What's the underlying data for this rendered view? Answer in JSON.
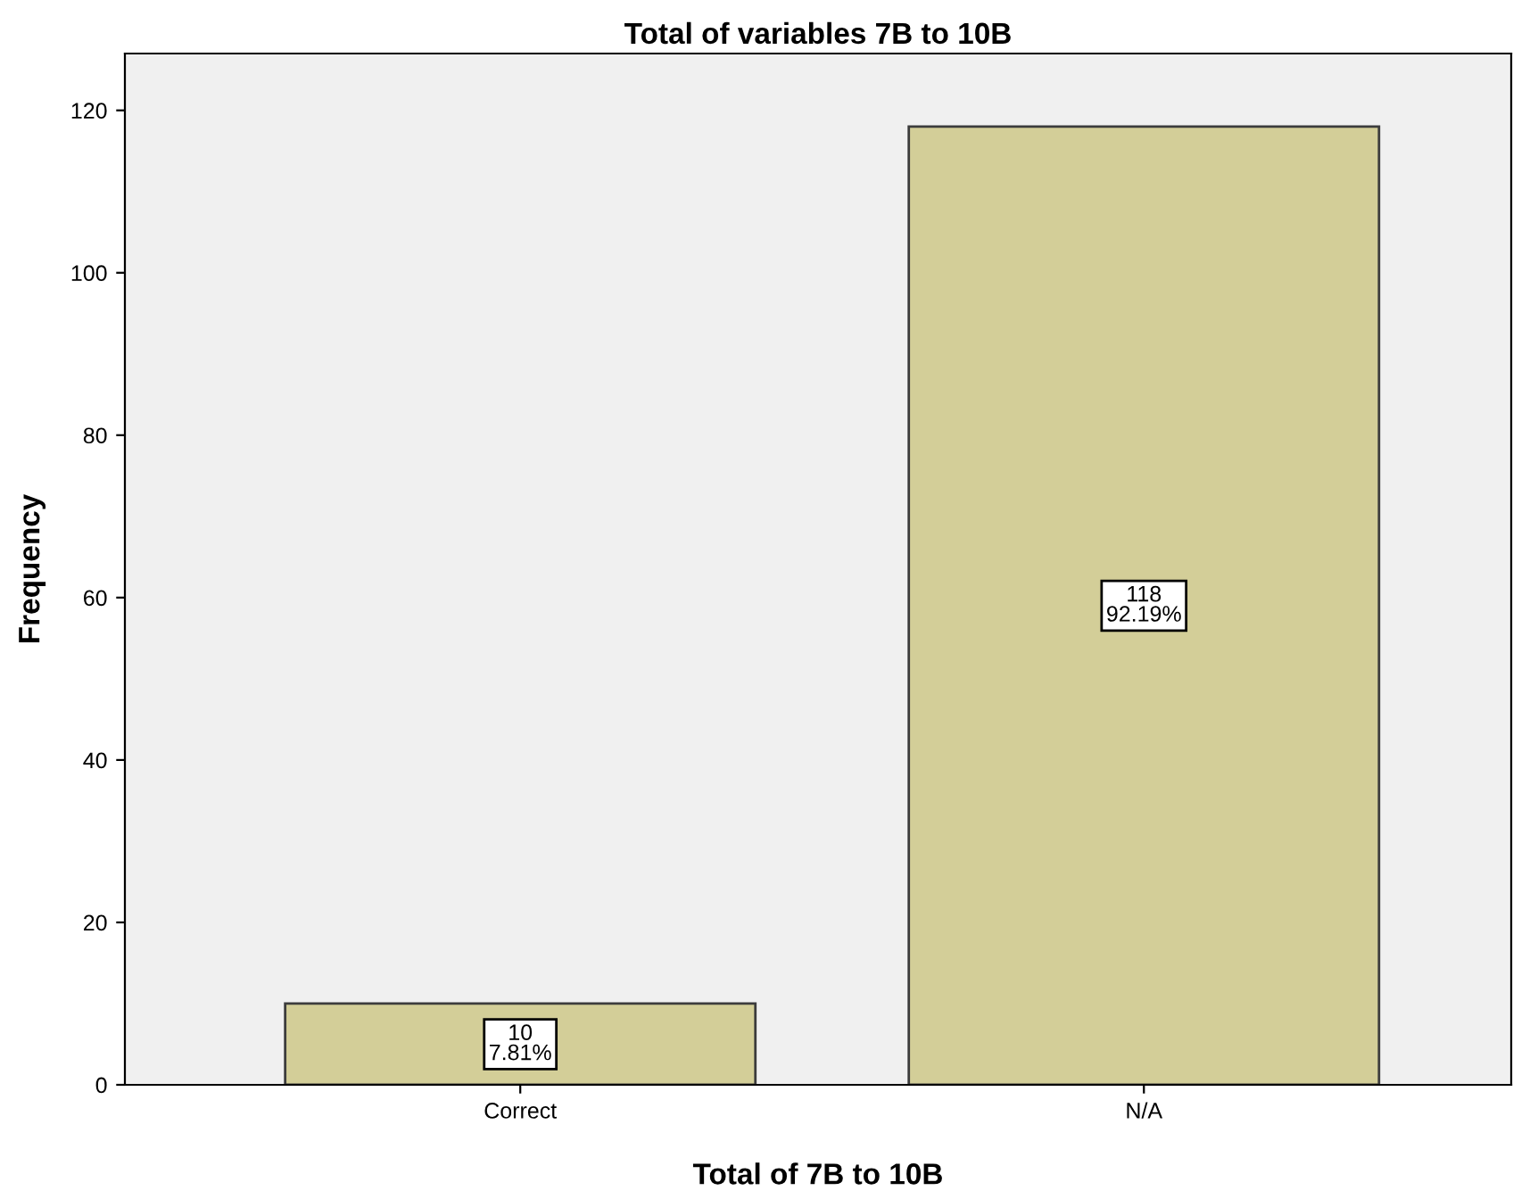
{
  "chart_data": {
    "type": "bar",
    "title": "Total of variables 7B to 10B",
    "xlabel": "Total of 7B to 10B",
    "ylabel": "Frequency",
    "categories": [
      "Correct",
      "N/A"
    ],
    "values": [
      10,
      118
    ],
    "value_labels": [
      "10\n7.81%",
      "118\n92.19%"
    ],
    "color": "#d3ce98",
    "ylim": [
      0,
      127
    ],
    "yticks": [
      0,
      20,
      40,
      60,
      80,
      100,
      120
    ],
    "grid": false,
    "legend": false
  }
}
